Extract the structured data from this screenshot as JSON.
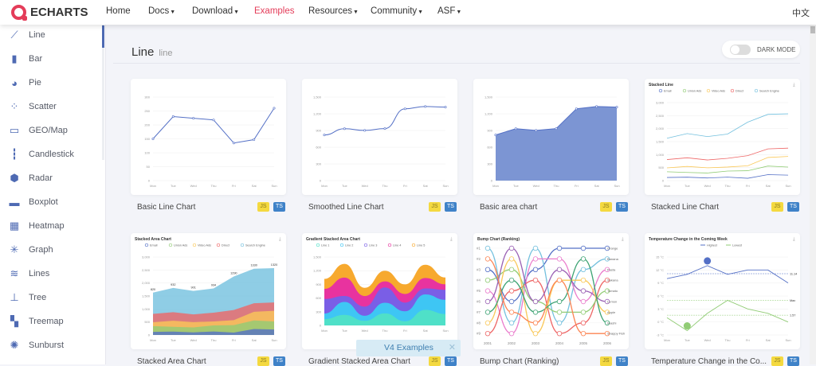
{
  "header": {
    "logo_text": "ECHARTS",
    "nav": [
      {
        "label": "Home",
        "dropdown": false
      },
      {
        "label": "Docs",
        "dropdown": true
      },
      {
        "label": "Download",
        "dropdown": true
      },
      {
        "label": "Examples",
        "dropdown": false,
        "active": true
      },
      {
        "label": "Resources",
        "dropdown": true
      },
      {
        "label": "Community",
        "dropdown": true
      },
      {
        "label": "ASF",
        "dropdown": true
      }
    ],
    "language": "中文",
    "active_color": "#e43c59"
  },
  "sidebar": {
    "active": "Line",
    "items": [
      {
        "label": "Line",
        "icon": "line-chart-icon"
      },
      {
        "label": "Bar",
        "icon": "bar-chart-icon"
      },
      {
        "label": "Pie",
        "icon": "pie-chart-icon"
      },
      {
        "label": "Scatter",
        "icon": "scatter-icon"
      },
      {
        "label": "GEO/Map",
        "icon": "map-icon"
      },
      {
        "label": "Candlestick",
        "icon": "candlestick-icon"
      },
      {
        "label": "Radar",
        "icon": "radar-icon"
      },
      {
        "label": "Boxplot",
        "icon": "boxplot-icon"
      },
      {
        "label": "Heatmap",
        "icon": "heatmap-icon"
      },
      {
        "label": "Graph",
        "icon": "graph-icon"
      },
      {
        "label": "Lines",
        "icon": "lines-icon"
      },
      {
        "label": "Tree",
        "icon": "tree-icon"
      },
      {
        "label": "Treemap",
        "icon": "treemap-icon"
      },
      {
        "label": "Sunburst",
        "icon": "sunburst-icon"
      }
    ]
  },
  "main": {
    "title": "Line",
    "subtitle": "line",
    "dark_mode_label": "DARK MODE",
    "dark_mode_on": false,
    "badges": {
      "js": "JS",
      "ts": "TS"
    },
    "v4_toast": {
      "label": "V4 Examples",
      "close": "✕"
    },
    "days": [
      "Mon",
      "Tue",
      "Wed",
      "Thu",
      "Fri",
      "Sat",
      "Sun"
    ],
    "cards": [
      {
        "title": "Basic Line Chart",
        "thumb": {
          "kind": "line",
          "ymax": 300,
          "yticks": [
            "0",
            "50",
            "100",
            "150",
            "200",
            "250",
            "300"
          ],
          "values": [
            150,
            230,
            224,
            218,
            135,
            147,
            260
          ]
        }
      },
      {
        "title": "Smoothed Line Chart",
        "thumb": {
          "kind": "smooth",
          "ymax": 1500,
          "yticks": [
            "0",
            "300",
            "600",
            "900",
            "1,200",
            "1,500"
          ],
          "values": [
            820,
            932,
            901,
            934,
            1290,
            1330,
            1320
          ]
        }
      },
      {
        "title": "Basic area chart",
        "thumb": {
          "kind": "area",
          "ymax": 1500,
          "yticks": [
            "0",
            "300",
            "600",
            "900",
            "1,200",
            "1,500"
          ],
          "values": [
            820,
            932,
            901,
            934,
            1290,
            1330,
            1320
          ]
        }
      },
      {
        "title": "Stacked Line Chart",
        "thumb": {
          "kind": "stackline",
          "heading": "Stacked Line",
          "ymax": 3000,
          "yticks": [
            "0",
            "500",
            "1,000",
            "1,500",
            "2,000",
            "2,500",
            "3,000"
          ],
          "series": [
            {
              "name": "Email",
              "color": "#5470c6",
              "values": [
                120,
                132,
                101,
                134,
                90,
                230,
                210
              ]
            },
            {
              "name": "Union Ads",
              "color": "#91cc75",
              "values": [
                220,
                182,
                191,
                234,
                290,
                330,
                310
              ]
            },
            {
              "name": "Video Ads",
              "color": "#fac858",
              "values": [
                150,
                232,
                201,
                154,
                190,
                330,
                410
              ]
            },
            {
              "name": "Direct",
              "color": "#ee6666",
              "values": [
                320,
                332,
                301,
                334,
                390,
                330,
                320
              ]
            },
            {
              "name": "Search Engine",
              "color": "#73c0de",
              "values": [
                820,
                932,
                901,
                934,
                1290,
                1330,
                1320
              ]
            }
          ]
        }
      },
      {
        "title": "Stacked Area Chart",
        "thumb": {
          "kind": "stackarea",
          "heading": "Stacked Area Chart",
          "ymax": 3000,
          "yticks": [
            "0",
            "500",
            "1,000",
            "1,500",
            "2,000",
            "2,500",
            "3,000"
          ],
          "series": [
            {
              "name": "Email",
              "color": "#5470c6",
              "values": [
                120,
                132,
                101,
                134,
                90,
                230,
                210
              ]
            },
            {
              "name": "Union Ads",
              "color": "#91cc75",
              "values": [
                220,
                182,
                191,
                234,
                290,
                330,
                310
              ]
            },
            {
              "name": "Video Ads",
              "color": "#fac858",
              "values": [
                150,
                232,
                201,
                154,
                190,
                330,
                410
              ]
            },
            {
              "name": "Direct",
              "color": "#ee6666",
              "values": [
                320,
                332,
                301,
                334,
                390,
                330,
                320
              ]
            },
            {
              "name": "Search Engine",
              "color": "#73c0de",
              "values": [
                820,
                932,
                901,
                934,
                1290,
                1330,
                1320
              ]
            }
          ]
        }
      },
      {
        "title": "Gradient Stacked Area Chart",
        "thumb": {
          "kind": "gradient",
          "heading": "Gradient Stacked Area Chart",
          "ymax": 1500,
          "yticks": [
            "0",
            "300",
            "600",
            "900",
            "1,200",
            "1,500"
          ],
          "series": [
            {
              "name": "Line 1",
              "color": "#4fe0c8",
              "values": [
                140,
                232,
                101,
                264,
                90,
                340,
                250
              ]
            },
            {
              "name": "Line 2",
              "color": "#3ec6f4",
              "values": [
                120,
                282,
                111,
                234,
                220,
                340,
                310
              ]
            },
            {
              "name": "Line 3",
              "color": "#7a5ee6",
              "values": [
                320,
                132,
                201,
                334,
                190,
                130,
                220
              ]
            },
            {
              "name": "Line 4",
              "color": "#e8339f",
              "values": [
                220,
                402,
                231,
                134,
                190,
                230,
                120
              ]
            },
            {
              "name": "Line 5",
              "color": "#f7a92e",
              "values": [
                220,
                302,
                181,
                234,
                210,
                290,
                150
              ]
            }
          ]
        }
      },
      {
        "title": "Bump Chart (Ranking)",
        "thumb": {
          "kind": "bump",
          "heading": "Bump Chart (Ranking)",
          "years": [
            "2001",
            "2002",
            "2003",
            "2004",
            "2005",
            "2006"
          ],
          "ranks": [
            "#1",
            "#2",
            "#3",
            "#4",
            "#5",
            "#6",
            "#7",
            "#8",
            "#9"
          ],
          "series": [
            {
              "name": "Orange",
              "color": "#5470c6",
              "values": [
                3,
                6,
                3,
                1,
                1,
                1
              ]
            },
            {
              "name": "Banana",
              "color": "#73c0de",
              "values": [
                1,
                8,
                1,
                8,
                3,
                2
              ]
            },
            {
              "name": "Pasta",
              "color": "#ea7ccc",
              "values": [
                5,
                9,
                2,
                2,
                6,
                3
              ]
            },
            {
              "name": "Sakana",
              "color": "#ee6666",
              "values": [
                9,
                5,
                4,
                9,
                8,
                4
              ]
            },
            {
              "name": "Tomato",
              "color": "#91cc75",
              "values": [
                4,
                3,
                6,
                7,
                7,
                5
              ]
            },
            {
              "name": "Lemon",
              "color": "#9a60b4",
              "values": [
                6,
                1,
                6,
                3,
                5,
                6
              ]
            },
            {
              "name": "Apple",
              "color": "#fac858",
              "values": [
                8,
                2,
                9,
                4,
                4,
                7
              ]
            },
            {
              "name": "Iwashi",
              "color": "#3ba272",
              "values": [
                7,
                4,
                7,
                6,
                2,
                8
              ]
            },
            {
              "name": "Snappy Fish",
              "color": "#fc8452",
              "values": [
                2,
                7,
                8,
                4,
                9,
                9
              ]
            }
          ]
        }
      },
      {
        "title": "Temperature Change in the Co...",
        "thumb": {
          "kind": "temp",
          "heading": "Temperature Change in the Coming Week",
          "ymin": -3,
          "ymax": 15,
          "yticks": [
            "-3 °C",
            "0 °C",
            "3 °C",
            "6 °C",
            "9 °C",
            "12 °C",
            "15 °C"
          ],
          "series": [
            {
              "name": "Highest",
              "color": "#5470c6",
              "values": [
                10,
                11,
                13,
                11,
                12,
                12,
                9
              ],
              "avg_label": "11.14"
            },
            {
              "name": "Lowest",
              "color": "#91cc75",
              "values": [
                1,
                -2,
                2,
                5,
                3,
                2,
                0
              ],
              "avg_label": "1.57",
              "max_label": "Max"
            }
          ]
        }
      }
    ]
  }
}
